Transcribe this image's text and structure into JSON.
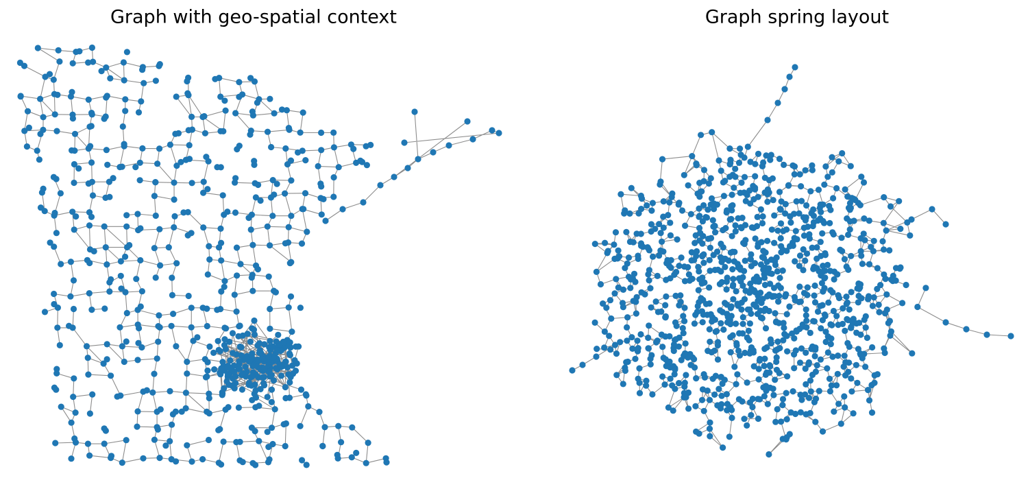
{
  "panels": [
    {
      "title": "Graph with geo-spatial context"
    },
    {
      "title": "Graph spring layout"
    }
  ]
}
